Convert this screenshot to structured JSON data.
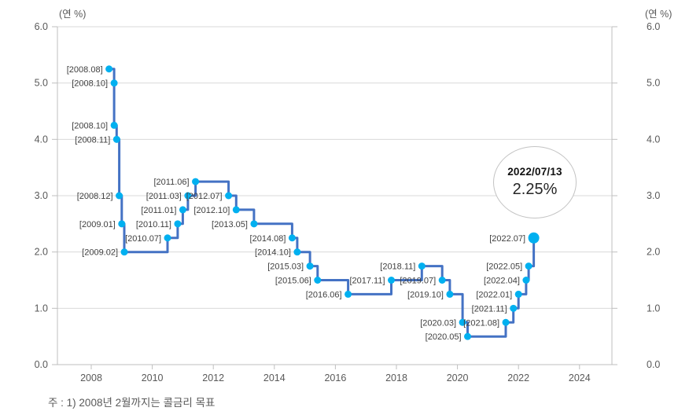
{
  "chart_data": {
    "type": "line",
    "subtype": "step-after",
    "title": "",
    "unit_label": "(연 %)",
    "legend": "none",
    "grid": "horizontal",
    "line_color": "#4472c4",
    "marker_color": "#00b0f0",
    "gridline_color": "#d9d9d9",
    "axis_color": "#bfbfbf",
    "tick_label_color": "#595959",
    "point_label_color": "#404040",
    "y_axis": {
      "min": 0,
      "max": 6,
      "tick_step": 1,
      "tick_labels": [
        "0.0",
        "1.0",
        "2.0",
        "3.0",
        "4.0",
        "5.0",
        "6.0"
      ]
    },
    "x_axis": {
      "tick_years": [
        2008,
        2010,
        2012,
        2014,
        2016,
        2018,
        2020,
        2022,
        2024
      ],
      "tick_labels": [
        "2008",
        "2010",
        "2012",
        "2014",
        "2016",
        "2018",
        "2020",
        "2022",
        "2024"
      ]
    },
    "series": [
      {
        "points": [
          {
            "label": "[2008.08]",
            "value": 5.25
          },
          {
            "label": "[2008.10]",
            "value": 5.0
          },
          {
            "label": "[2008.10]",
            "value": 4.25
          },
          {
            "label": "[2008.11]",
            "value": 4.0
          },
          {
            "label": "[2008.12]",
            "value": 3.0
          },
          {
            "label": "[2009.01]",
            "value": 2.5
          },
          {
            "label": "[2009.02]",
            "value": 2.0
          },
          {
            "label": "[2010.07]",
            "value": 2.25
          },
          {
            "label": "[2010.11]",
            "value": 2.5
          },
          {
            "label": "[2011.01]",
            "value": 2.75
          },
          {
            "label": "[2011.03]",
            "value": 3.0
          },
          {
            "label": "[2011.06]",
            "value": 3.25
          },
          {
            "label": "[2012.07]",
            "value": 3.0
          },
          {
            "label": "[2012.10]",
            "value": 2.75
          },
          {
            "label": "[2013.05]",
            "value": 2.5
          },
          {
            "label": "[2014.08]",
            "value": 2.25
          },
          {
            "label": "[2014.10]",
            "value": 2.0
          },
          {
            "label": "[2015.03]",
            "value": 1.75
          },
          {
            "label": "[2015.06]",
            "value": 1.5
          },
          {
            "label": "[2016.06]",
            "value": 1.25
          },
          {
            "label": "[2017.11]",
            "value": 1.5
          },
          {
            "label": "[2018.11]",
            "value": 1.75
          },
          {
            "label": "[2019.07]",
            "value": 1.5
          },
          {
            "label": "[2019.10]",
            "value": 1.25
          },
          {
            "label": "[2020.03]",
            "value": 0.75
          },
          {
            "label": "[2020.05]",
            "value": 0.5
          },
          {
            "label": "[2021.08]",
            "value": 0.75
          },
          {
            "label": "[2021.11]",
            "value": 1.0
          },
          {
            "label": "[2022.01]",
            "value": 1.25
          },
          {
            "label": "[2022.04]",
            "value": 1.5
          },
          {
            "label": "[2022.05]",
            "value": 1.75
          },
          {
            "label": "[2022.07]",
            "value": 2.25
          }
        ]
      }
    ],
    "annotation": {
      "date": "2022/07/13",
      "rate": "2.25%"
    },
    "footnote": "주 : 1) 2008년 2월까지는 콜금리 목표"
  }
}
